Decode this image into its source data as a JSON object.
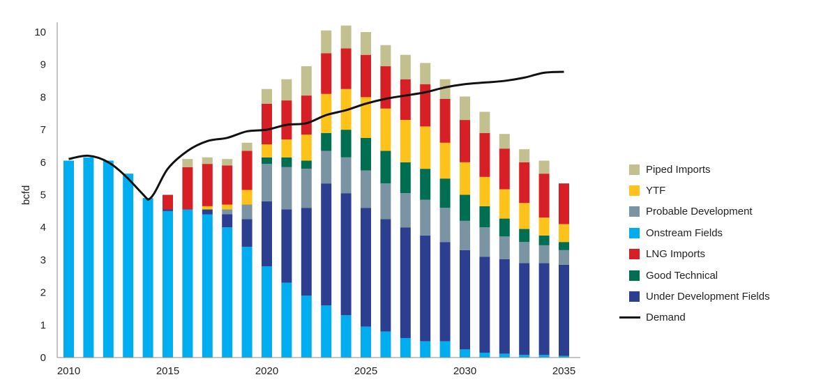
{
  "chart_data": {
    "type": "bar",
    "stacked": true,
    "ylabel": "bcfd",
    "xlabel": "",
    "ylim": [
      0,
      10.3
    ],
    "yticks": [
      0,
      1,
      2,
      3,
      4,
      5,
      6,
      7,
      8,
      9,
      10
    ],
    "xticks": [
      2010,
      2015,
      2020,
      2025,
      2030,
      2035
    ],
    "categories": [
      2010,
      2011,
      2012,
      2013,
      2014,
      2015,
      2016,
      2017,
      2018,
      2019,
      2020,
      2021,
      2022,
      2023,
      2024,
      2025,
      2026,
      2027,
      2028,
      2029,
      2030,
      2031,
      2032,
      2033,
      2034,
      2035
    ],
    "series": [
      {
        "name": "Onstream Fields",
        "key": "onstream",
        "color": "#00aeef",
        "values": [
          6.05,
          6.15,
          6.05,
          5.65,
          4.9,
          4.5,
          4.55,
          4.4,
          4.0,
          3.4,
          2.8,
          2.3,
          1.9,
          1.6,
          1.3,
          0.95,
          0.8,
          0.6,
          0.5,
          0.5,
          0.25,
          0.15,
          0.12,
          0.08,
          0.08,
          0.05
        ]
      },
      {
        "name": "Under Development Fields",
        "key": "underdev",
        "color": "#2b3e8f",
        "values": [
          0,
          0,
          0,
          0,
          0,
          0.05,
          0,
          0.15,
          0.4,
          0.85,
          2.0,
          2.25,
          2.7,
          3.75,
          3.75,
          3.65,
          3.45,
          3.4,
          3.25,
          3.05,
          3.05,
          2.95,
          2.9,
          2.82,
          2.82,
          2.8
        ]
      },
      {
        "name": "Probable Development",
        "key": "probable",
        "color": "#7b94a4",
        "values": [
          0,
          0,
          0,
          0,
          0,
          0,
          0,
          0,
          0.15,
          0.45,
          1.15,
          1.3,
          1.2,
          1.0,
          1.1,
          1.15,
          1.1,
          1.05,
          1.1,
          1.05,
          0.9,
          0.9,
          0.7,
          0.65,
          0.55,
          0.45
        ]
      },
      {
        "name": "Good Technical",
        "key": "goodtech",
        "color": "#006e51",
        "values": [
          0,
          0,
          0,
          0,
          0,
          0,
          0,
          0,
          0,
          0,
          0.2,
          0.3,
          0.25,
          0.55,
          0.85,
          1.0,
          1.0,
          0.95,
          0.95,
          0.9,
          0.8,
          0.65,
          0.55,
          0.4,
          0.3,
          0.25
        ]
      },
      {
        "name": "YTF",
        "key": "ytf",
        "color": "#fdc31b",
        "values": [
          0,
          0,
          0,
          0,
          0,
          0,
          0,
          0.1,
          0.15,
          0.45,
          0.4,
          0.55,
          0.8,
          1.2,
          1.25,
          1.25,
          1.3,
          1.3,
          1.3,
          1.1,
          1.0,
          0.9,
          0.9,
          0.8,
          0.55,
          0.55
        ]
      },
      {
        "name": "LNG Imports",
        "key": "lng",
        "color": "#d71f26",
        "values": [
          0,
          0,
          0,
          0,
          0,
          0.45,
          1.3,
          1.3,
          1.2,
          1.2,
          1.25,
          1.2,
          1.2,
          1.25,
          1.25,
          1.3,
          1.3,
          1.25,
          1.3,
          1.35,
          1.3,
          1.35,
          1.25,
          1.25,
          1.35,
          1.25
        ]
      },
      {
        "name": "Piped Imports",
        "key": "piped",
        "color": "#c2c08e",
        "values": [
          0,
          0,
          0,
          0,
          0,
          0,
          0.25,
          0.2,
          0.2,
          0.25,
          0.45,
          0.65,
          0.9,
          0.7,
          0.7,
          0.7,
          0.65,
          0.75,
          0.65,
          0.6,
          0.72,
          0.65,
          0.45,
          0.4,
          0.4,
          0
        ]
      }
    ],
    "line": {
      "name": "Demand",
      "color": "#111111",
      "x": [
        2010,
        2011,
        2012,
        2013,
        2014,
        2015,
        2016,
        2017,
        2018,
        2019,
        2020,
        2021,
        2022,
        2023,
        2024,
        2025,
        2026,
        2027,
        2028,
        2029,
        2030,
        2031,
        2032,
        2033,
        2034,
        2035
      ],
      "values": [
        6.1,
        6.2,
        6.0,
        5.5,
        4.85,
        5.8,
        6.35,
        6.65,
        6.75,
        6.95,
        7.0,
        7.15,
        7.2,
        7.45,
        7.6,
        7.8,
        7.95,
        8.05,
        8.15,
        8.3,
        8.4,
        8.45,
        8.5,
        8.6,
        8.75,
        8.78
      ]
    },
    "legend_placement": "right",
    "legend_order": [
      "piped",
      "ytf",
      "probable",
      "onstream",
      "lng",
      "goodtech",
      "underdev",
      "demand"
    ]
  },
  "legend": [
    {
      "label": "Piped Imports",
      "color": "#c2c08e",
      "kind": "box",
      "name": "legend-piped-imports"
    },
    {
      "label": "YTF",
      "color": "#fdc31b",
      "kind": "box",
      "name": "legend-ytf"
    },
    {
      "label": "Probable Development",
      "color": "#7b94a4",
      "kind": "box",
      "name": "legend-probable-development"
    },
    {
      "label": "Onstream Fields",
      "color": "#00aeef",
      "kind": "box",
      "name": "legend-onstream-fields"
    },
    {
      "label": "LNG Imports",
      "color": "#d71f26",
      "kind": "box",
      "name": "legend-lng-imports"
    },
    {
      "label": "Good Technical",
      "color": "#006e51",
      "kind": "box",
      "name": "legend-good-technical"
    },
    {
      "label": "Under Development Fields",
      "color": "#2b3e8f",
      "kind": "box",
      "name": "legend-under-development-fields"
    },
    {
      "label": "Demand",
      "color": "#111111",
      "kind": "line",
      "name": "legend-demand"
    }
  ]
}
